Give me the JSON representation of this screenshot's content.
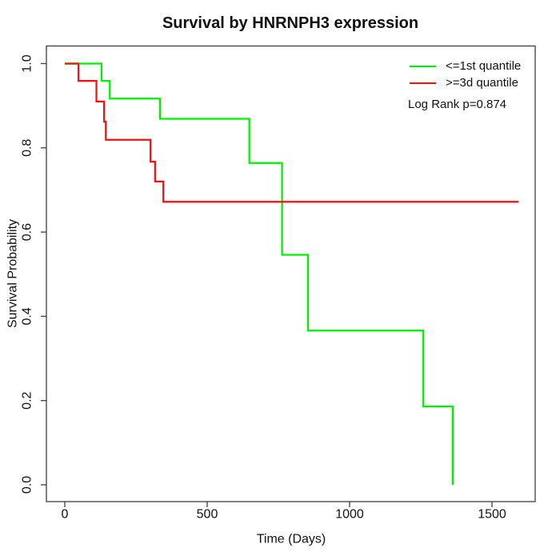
{
  "chart_data": {
    "type": "line",
    "subtype": "kaplan-meier-step",
    "title": "Survival by HNRNPH3 expression",
    "xlabel": "Time (Days)",
    "ylabel": "Survival Probability",
    "xlim": [
      0,
      1650
    ],
    "ylim": [
      0.0,
      1.0
    ],
    "x_ticks": [
      0,
      500,
      1000,
      1500
    ],
    "x_tick_labels": [
      "0",
      "500",
      "1000",
      "1500"
    ],
    "y_ticks": [
      0.0,
      0.2,
      0.4,
      0.6,
      0.8,
      1.0
    ],
    "y_tick_labels": [
      "0.0",
      "0.2",
      "0.4",
      "0.6",
      "0.8",
      "1.0"
    ],
    "grid": false,
    "legend_position": "top-right",
    "box": true,
    "series": [
      {
        "name": "<=1st quantile",
        "color_key": "group1",
        "steps": [
          [
            0,
            1.0
          ],
          [
            129,
            0.959
          ],
          [
            158,
            0.917
          ],
          [
            334,
            0.869
          ],
          [
            648,
            0.764
          ],
          [
            763,
            0.546
          ],
          [
            854,
            0.366
          ],
          [
            1259,
            0.186
          ],
          [
            1362,
            0.0
          ]
        ],
        "end_time": 1362
      },
      {
        "name": ">=3d quantile",
        "color_key": "group2",
        "steps": [
          [
            0,
            1.0
          ],
          [
            48,
            0.959
          ],
          [
            111,
            0.91
          ],
          [
            138,
            0.862
          ],
          [
            144,
            0.819
          ],
          [
            301,
            0.767
          ],
          [
            317,
            0.72
          ],
          [
            346,
            0.672
          ]
        ],
        "end_time": 1594
      }
    ],
    "annotation": "Log Rank p=0.874"
  },
  "colors": {
    "group1": "#00EE00",
    "group2": "#FF0D0D",
    "overlap": "#C83200",
    "axis": "#3d3d3d",
    "text": "#111111"
  }
}
